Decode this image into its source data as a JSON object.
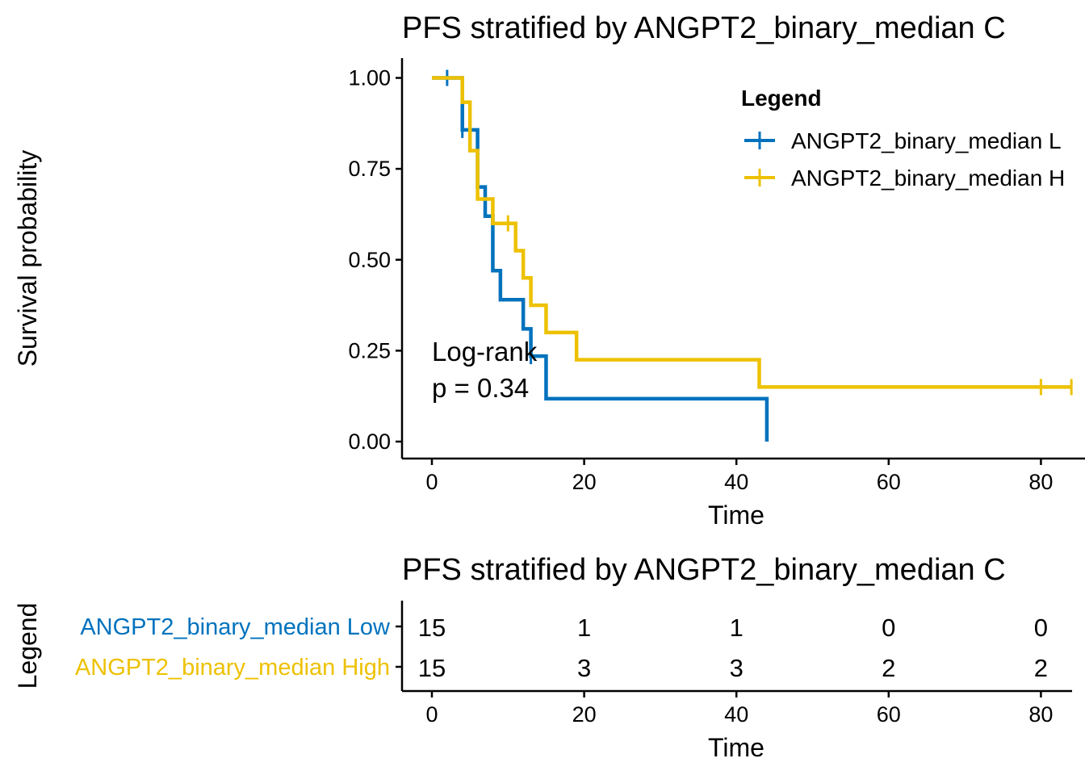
{
  "colors": {
    "low": "#0072BD",
    "high": "#EDC100",
    "axis": "#000000"
  },
  "survival_plot": {
    "title": "PFS stratified by ANGPT2_binary_median C",
    "xlabel": "Time",
    "ylabel": "Survival probability",
    "annotation_line1": "Log-rank",
    "annotation_line2": "p = 0.34",
    "legend_title": "Legend",
    "legend_low": "ANGPT2_binary_median L",
    "legend_high": "ANGPT2_binary_median H"
  },
  "risk_table": {
    "title": "PFS stratified by ANGPT2_binary_median C",
    "xlabel": "Time",
    "ylabel": "Legend",
    "strata_low": "ANGPT2_binary_median Low",
    "strata_high": "ANGPT2_binary_median High"
  },
  "chart_data": [
    {
      "type": "line",
      "subtype": "kaplan-meier step",
      "title": "PFS stratified by ANGPT2_binary_median C",
      "xlabel": "Time",
      "ylabel": "Survival probability",
      "xlim": [
        -4,
        85
      ],
      "ylim": [
        -0.05,
        1.05
      ],
      "x_ticks": [
        0,
        20,
        40,
        60,
        80
      ],
      "y_ticks": [
        0.0,
        0.25,
        0.5,
        0.75,
        1.0
      ],
      "y_tick_labels": [
        "0.00",
        "0.25",
        "0.50",
        "0.75",
        "1.00"
      ],
      "grid": false,
      "legend_position": "top-right",
      "series": [
        {
          "name": "ANGPT2_binary_median Low",
          "color": "#0072BD",
          "steps": [
            [
              0,
              1.0
            ],
            [
              4,
              0.857
            ],
            [
              6,
              0.7
            ],
            [
              7,
              0.62
            ],
            [
              8,
              0.47
            ],
            [
              9,
              0.39
            ],
            [
              12,
              0.31
            ],
            [
              13,
              0.235
            ],
            [
              15,
              0.118
            ],
            [
              44,
              0.0
            ]
          ],
          "end_x": 44,
          "censor": [
            [
              2,
              1.0
            ],
            [
              4,
              0.857
            ],
            [
              13,
              0.235
            ]
          ]
        },
        {
          "name": "ANGPT2_binary_median High",
          "color": "#EDC100",
          "steps": [
            [
              0,
              1.0
            ],
            [
              4,
              0.933
            ],
            [
              5,
              0.8
            ],
            [
              6,
              0.667
            ],
            [
              8,
              0.6
            ],
            [
              11,
              0.525
            ],
            [
              12,
              0.45
            ],
            [
              13,
              0.375
            ],
            [
              15,
              0.3
            ],
            [
              19,
              0.225
            ],
            [
              43,
              0.15
            ]
          ],
          "end_x": 84,
          "censor": [
            [
              10,
              0.6
            ],
            [
              80,
              0.15
            ],
            [
              84,
              0.15
            ]
          ]
        }
      ],
      "annotations": [
        "Log-rank",
        "p = 0.34"
      ]
    },
    {
      "type": "table",
      "title": "PFS stratified by ANGPT2_binary_median C",
      "xlabel": "Time",
      "ylabel": "Legend",
      "x_ticks": [
        0,
        20,
        40,
        60,
        80
      ],
      "rows": [
        {
          "name": "ANGPT2_binary_median Low",
          "color": "#0072BD",
          "values": [
            15,
            1,
            1,
            0,
            0
          ]
        },
        {
          "name": "ANGPT2_binary_median High",
          "color": "#EDC100",
          "values": [
            15,
            3,
            3,
            2,
            2
          ]
        }
      ]
    }
  ]
}
